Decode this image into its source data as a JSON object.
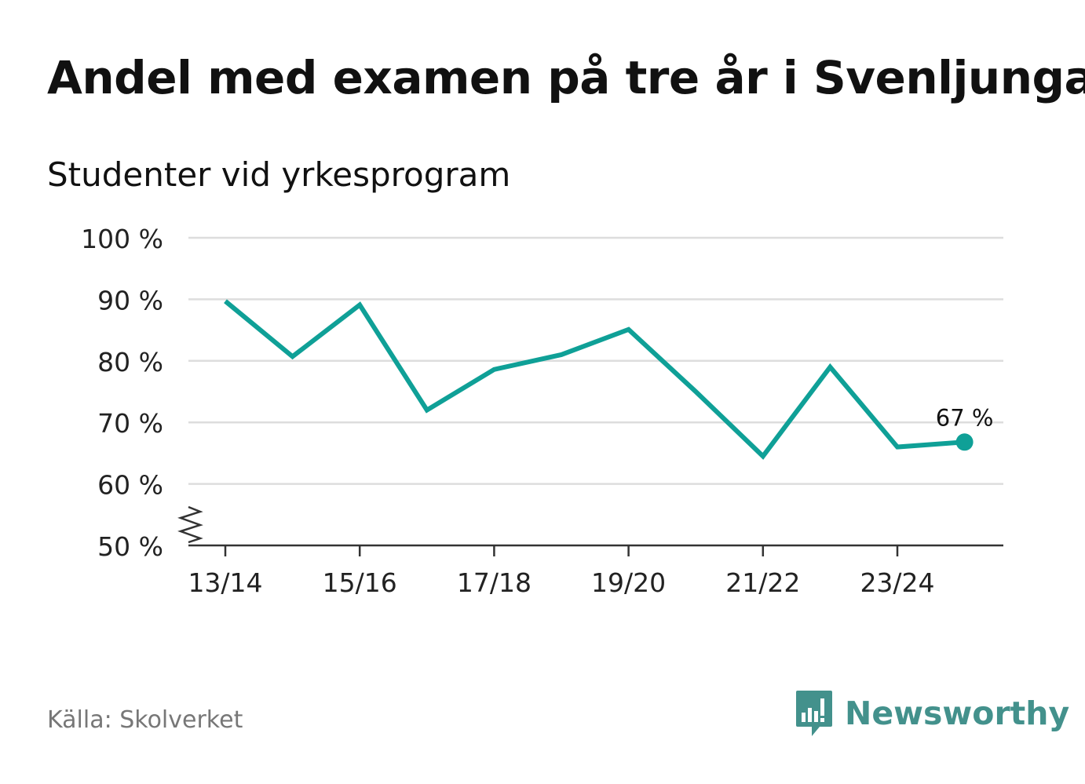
{
  "title": "Andel med examen på tre år i Svenljunga",
  "subtitle": "Studenter vid yrkesprogram",
  "source": "Källa: Skolverket",
  "brand": "Newsworthy",
  "colors": {
    "line": "#0fa097",
    "grid": "#dddddd",
    "axis": "#333333",
    "brand": "#43918c",
    "source": "#777777"
  },
  "chart_data": {
    "type": "line",
    "title": "Andel med examen på tre år i Svenljunga",
    "subtitle": "Studenter vid yrkesprogram",
    "xlabel": "",
    "ylabel": "",
    "x": [
      "13/14",
      "14/15",
      "15/16",
      "16/17",
      "17/18",
      "18/19",
      "19/20",
      "20/21",
      "21/22",
      "22/23",
      "23/24",
      "24/25"
    ],
    "tick_labels": [
      "13/14",
      "15/16",
      "17/18",
      "19/20",
      "21/22",
      "23/24"
    ],
    "tick_indices": [
      0,
      2,
      4,
      6,
      8,
      10
    ],
    "values": [
      89.7,
      80.7,
      89.1,
      72.0,
      78.6,
      81.0,
      85.1,
      75.0,
      64.5,
      79.0,
      66.0,
      66.8
    ],
    "ylim": [
      50,
      100
    ],
    "yticks": [
      100,
      90,
      80,
      70,
      60,
      50
    ],
    "ytick_labels": [
      "100 %",
      "90 %",
      "80 %",
      "70 %",
      "60 %",
      "50 %"
    ],
    "axis_break": true,
    "grid": true,
    "last_point_label": "67 %"
  }
}
